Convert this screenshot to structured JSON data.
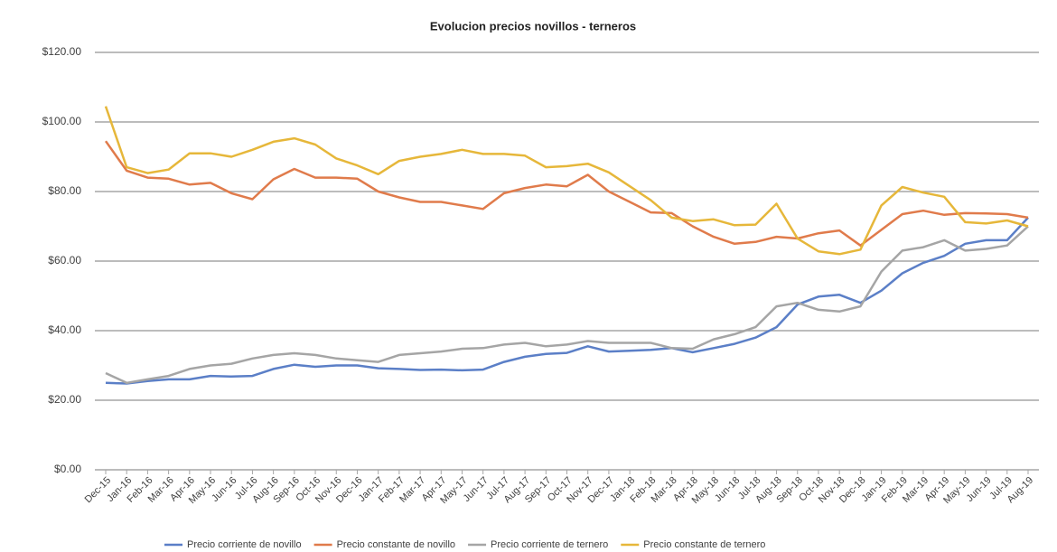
{
  "chart_data": {
    "type": "line",
    "title": "Evolucion precios novillos - terneros",
    "categories": [
      "Dec-15",
      "Jan-16",
      "Feb-16",
      "Mar-16",
      "Apr-16",
      "May-16",
      "Jun-16",
      "Jul-16",
      "Aug-16",
      "Sep-16",
      "Oct-16",
      "Nov-16",
      "Dec-16",
      "Jan-17",
      "Feb-17",
      "Mar-17",
      "Apr-17",
      "May-17",
      "Jun-17",
      "Jul-17",
      "Aug-17",
      "Sep-17",
      "Oct-17",
      "Nov-17",
      "Dec-17",
      "Jan-18",
      "Feb-18",
      "Mar-18",
      "Apr-18",
      "May-18",
      "Jun-18",
      "Jul-18",
      "Aug-18",
      "Sep-18",
      "Oct-18",
      "Nov-18",
      "Dec-18",
      "Jan-19",
      "Feb-19",
      "Mar-19",
      "Apr-19",
      "May-19",
      "Jun-19",
      "Jul-19",
      "Aug-19"
    ],
    "series": [
      {
        "name": "Precio corriente de novillo",
        "color": "#5b7fc7",
        "values": [
          25,
          24.8,
          25.5,
          26,
          26,
          27,
          26.8,
          27,
          29,
          30.2,
          29.6,
          30,
          30,
          29.2,
          29,
          28.7,
          28.8,
          28.6,
          28.8,
          31,
          32.5,
          33.3,
          33.6,
          35.5,
          34,
          34.2,
          34.5,
          35,
          33.8,
          35,
          36.2,
          38,
          41,
          47.5,
          49.8,
          50.3,
          48,
          51.5,
          56.5,
          59.5,
          61.5,
          65,
          66,
          66,
          72.5
        ]
      },
      {
        "name": "Precio constante de novillo",
        "color": "#e07b4b",
        "values": [
          94.5,
          86,
          84,
          83.7,
          82,
          82.5,
          79.5,
          77.8,
          83.5,
          86.5,
          84,
          84,
          83.7,
          80,
          78.3,
          77,
          77,
          76,
          75,
          79.5,
          81,
          82,
          81.5,
          84.8,
          80,
          77,
          74,
          73.8,
          70,
          67,
          65,
          65.5,
          67,
          66.5,
          68,
          68.8,
          64.5,
          69,
          73.5,
          74.5,
          73.3,
          73.8,
          73.7,
          73.5,
          72.5
        ]
      },
      {
        "name": "Precio corriente de ternero",
        "color": "#a5a5a5",
        "values": [
          27.8,
          25,
          26,
          27,
          29,
          30,
          30.5,
          32,
          33,
          33.5,
          33,
          32,
          31.5,
          31,
          33,
          33.5,
          34,
          34.8,
          35,
          36,
          36.5,
          35.5,
          36,
          37,
          36.5,
          36.5,
          36.5,
          35,
          34.8,
          37.5,
          39,
          41,
          47,
          48,
          46,
          45.5,
          47,
          57,
          63,
          64,
          66,
          63,
          63.5,
          64.5,
          70
        ]
      },
      {
        "name": "Precio constante de ternero",
        "color": "#e6b73a",
        "values": [
          104.5,
          87,
          85.3,
          86.3,
          91,
          91,
          90,
          92,
          94.3,
          95.3,
          93.5,
          89.5,
          87.5,
          85,
          88.8,
          90,
          90.8,
          92,
          90.8,
          90.8,
          90.3,
          87,
          87.3,
          88,
          85.5,
          81.5,
          77.5,
          72.5,
          71.5,
          72,
          70.3,
          70.5,
          76.5,
          66.5,
          62.8,
          62,
          63.3,
          76,
          81.3,
          79.7,
          78.5,
          71.2,
          70.8,
          71.7,
          70
        ]
      }
    ],
    "ylim": [
      0,
      120
    ],
    "yticks": [
      {
        "value": 0,
        "label": "$0.00"
      },
      {
        "value": 20,
        "label": "$20.00"
      },
      {
        "value": 40,
        "label": "$40.00"
      },
      {
        "value": 60,
        "label": "$60.00"
      },
      {
        "value": 80,
        "label": "$80.00"
      },
      {
        "value": 100,
        "label": "$100.00"
      },
      {
        "value": 120,
        "label": "$120.00"
      }
    ],
    "grid": true
  }
}
